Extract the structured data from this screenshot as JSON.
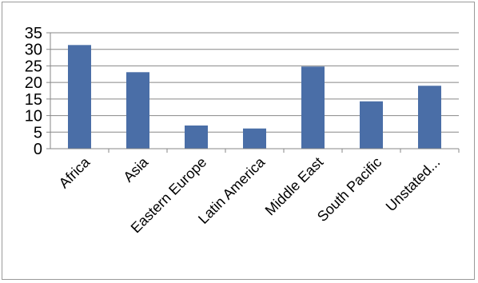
{
  "chart_data": {
    "type": "bar",
    "categories": [
      "Africa",
      "Asia",
      "Eastern Europe",
      "Latin America",
      "Middle East",
      "South Pacific",
      "Unstated..."
    ],
    "values": [
      31.3,
      23.1,
      7,
      6.1,
      24.8,
      14.3,
      19
    ],
    "ylim": [
      0,
      35
    ],
    "yticks": [
      0,
      5,
      10,
      15,
      20,
      25,
      30,
      35
    ],
    "grid": true,
    "legend": "none",
    "bar_color": "#4a6ea7"
  }
}
